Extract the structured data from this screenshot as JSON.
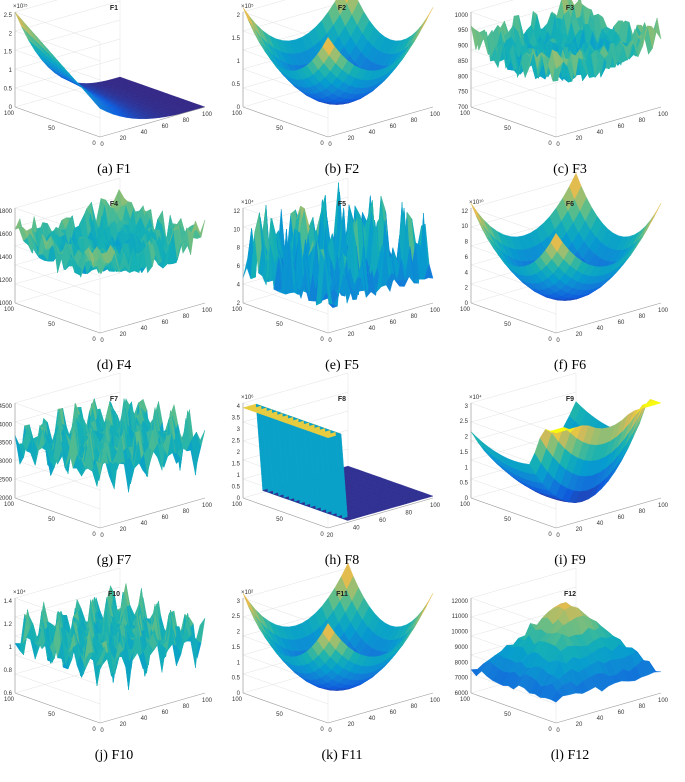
{
  "figure": {
    "panels": [
      {
        "title": "F1",
        "caption": "(a) F1",
        "exp": "×10¹⁵",
        "z_ticks": [
          "0",
          "0.5",
          "1",
          "1.5",
          "2",
          "2.5"
        ],
        "x_ticks": [
          "0",
          "20",
          "40",
          "60",
          "80",
          "100"
        ],
        "y_ticks": [
          "0",
          "50",
          "100"
        ],
        "shape": "steep"
      },
      {
        "title": "F2",
        "caption": "(b) F2",
        "exp": "×10⁵",
        "z_ticks": [
          "0",
          "0.5",
          "1",
          "1.5",
          "2"
        ],
        "x_ticks": [
          "0",
          "20",
          "40",
          "60",
          "80",
          "100"
        ],
        "y_ticks": [
          "0",
          "50",
          "100"
        ],
        "shape": "bowl"
      },
      {
        "title": "F3",
        "caption": "(c) F3",
        "exp": "",
        "z_ticks": [
          "700",
          "750",
          "800",
          "850",
          "900",
          "950",
          "1000"
        ],
        "x_ticks": [
          "0",
          "20",
          "40",
          "60",
          "80",
          "100"
        ],
        "y_ticks": [
          "0",
          "50",
          "100"
        ],
        "shape": "noisy"
      },
      {
        "title": "F4",
        "caption": "(d) F4",
        "exp": "",
        "z_ticks": [
          "1000",
          "1200",
          "1400",
          "1600",
          "1800"
        ],
        "x_ticks": [
          "0",
          "20",
          "40",
          "60",
          "80",
          "100"
        ],
        "y_ticks": [
          "0",
          "50",
          "100"
        ],
        "shape": "noisy"
      },
      {
        "title": "F5",
        "caption": "(e) F5",
        "exp": "×10⁴",
        "z_ticks": [
          "2",
          "4",
          "6",
          "8",
          "10",
          "12"
        ],
        "x_ticks": [
          "0",
          "20",
          "40",
          "60",
          "80",
          "100"
        ],
        "y_ticks": [
          "0",
          "50",
          "100"
        ],
        "shape": "spiky"
      },
      {
        "title": "F6",
        "caption": "(f) F6",
        "exp": "×10¹⁰",
        "z_ticks": [
          "0",
          "2",
          "4",
          "6",
          "8",
          "10",
          "12"
        ],
        "x_ticks": [
          "0",
          "20",
          "40",
          "60",
          "80",
          "100"
        ],
        "y_ticks": [
          "0",
          "50",
          "100"
        ],
        "shape": "bowl"
      },
      {
        "title": "F7",
        "caption": "(g) F7",
        "exp": "",
        "z_ticks": [
          "2000",
          "2500",
          "3000",
          "3500",
          "4000",
          "4500"
        ],
        "x_ticks": [
          "0",
          "20",
          "40",
          "60",
          "80",
          "100"
        ],
        "y_ticks": [
          "0",
          "50",
          "100"
        ],
        "shape": "wavy"
      },
      {
        "title": "F8",
        "caption": "(h) F8",
        "exp": "×10⁶",
        "z_ticks": [
          "0",
          "0.5",
          "1",
          "1.5",
          "2",
          "2.5",
          "3",
          "3.5",
          "4"
        ],
        "x_ticks": [
          "20",
          "40",
          "60",
          "80",
          "100"
        ],
        "y_ticks": [
          "0",
          "50",
          "100"
        ],
        "shape": "wall"
      },
      {
        "title": "F9",
        "caption": "(i) F9",
        "exp": "×10⁴",
        "z_ticks": [
          "0",
          "0.5",
          "1",
          "1.5",
          "2",
          "2.5",
          "3"
        ],
        "x_ticks": [
          "0",
          "20",
          "40",
          "60",
          "80",
          "100"
        ],
        "y_ticks": [
          "0",
          "50",
          "100"
        ],
        "shape": "saddle"
      },
      {
        "title": "F10",
        "caption": "(j) F10",
        "exp": "×10⁴",
        "z_ticks": [
          "0.6",
          "0.8",
          "1",
          "1.2",
          "1.4"
        ],
        "x_ticks": [
          "0",
          "20",
          "40",
          "60",
          "80",
          "100"
        ],
        "y_ticks": [
          "0",
          "50",
          "100"
        ],
        "shape": "wavy"
      },
      {
        "title": "F11",
        "caption": "(k) F11",
        "exp": "×10²",
        "z_ticks": [
          "0",
          "0.5",
          "1",
          "1.5",
          "2",
          "2.5",
          "3"
        ],
        "x_ticks": [
          "0",
          "20",
          "40",
          "60",
          "80",
          "100"
        ],
        "y_ticks": [
          "0",
          "50",
          "100"
        ],
        "shape": "bowl"
      },
      {
        "title": "F12",
        "caption": "(l) F12",
        "exp": "",
        "z_ticks": [
          "6000",
          "7000",
          "8000",
          "9000",
          "10000",
          "11000",
          "12000"
        ],
        "x_ticks": [
          "0",
          "20",
          "40",
          "60",
          "80",
          "100"
        ],
        "y_ticks": [
          "0",
          "50",
          "100"
        ],
        "shape": "pyramid"
      }
    ]
  }
}
